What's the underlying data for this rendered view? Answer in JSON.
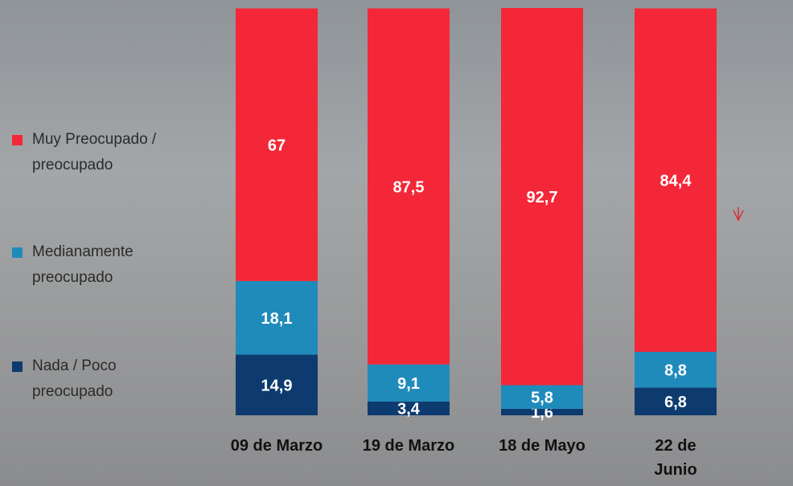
{
  "chart_data": {
    "type": "stacked-bar",
    "categories": [
      "09 de Marzo",
      "19 de Marzo",
      "18 de Mayo",
      "22 de Junio"
    ],
    "series": [
      {
        "name": "Nada / Poco preocupado",
        "color": "#0d3b6f",
        "values": [
          14.9,
          3.4,
          1.6,
          6.8
        ],
        "value_labels": [
          "14,9",
          "3,4",
          "1,6",
          "6,8"
        ]
      },
      {
        "name": "Medianamente preocupado",
        "color": "#1f8bbb",
        "values": [
          18.1,
          9.1,
          5.8,
          8.8
        ],
        "value_labels": [
          "18,1",
          "9,1",
          "5,8",
          "8,8"
        ]
      },
      {
        "name": "Muy Preocupado / preocupado",
        "color": "#f42738",
        "values": [
          67,
          87.5,
          92.7,
          84.4
        ],
        "value_labels": [
          "67",
          "87,5",
          "92,7",
          "84,4"
        ]
      }
    ],
    "legend": "left"
  }
}
